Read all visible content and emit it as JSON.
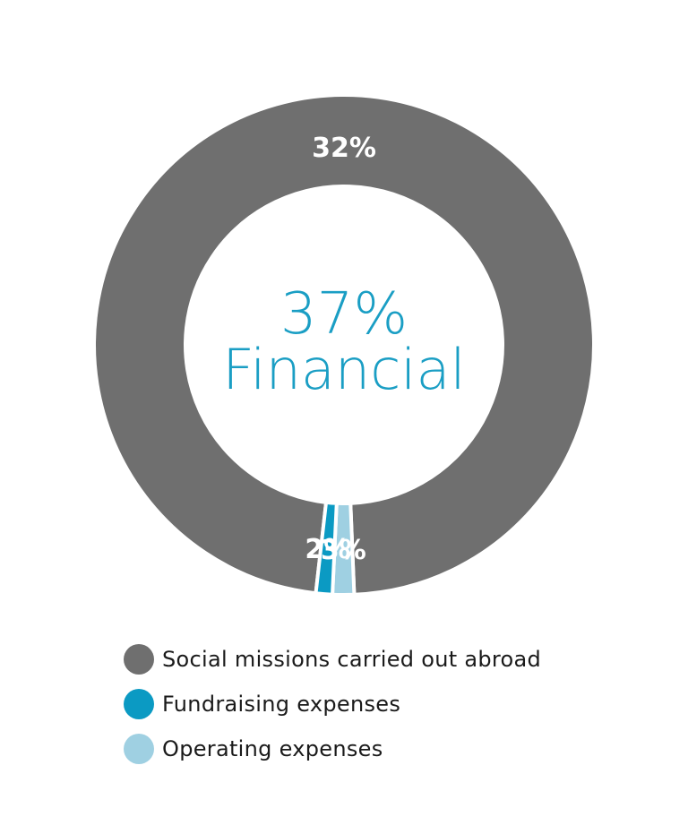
{
  "chart_data": {
    "type": "pie",
    "variant": "donut",
    "center_label": {
      "value": "37%",
      "text": "Financial"
    },
    "slices": [
      {
        "label": "Social missions carried out abroad",
        "value": 32,
        "value_label": "32%",
        "color": "#6f6f6f"
      },
      {
        "label": "Fundraising expenses",
        "value": 2,
        "value_label": "2%",
        "color": "#0b9ac3"
      },
      {
        "label": "Operating expenses",
        "value": 3,
        "value_label": "3%",
        "color": "#9fd0e2"
      }
    ],
    "legend_position": "bottom",
    "colors": {
      "center_text": "#1a9ec4",
      "slice_label": "#ffffff",
      "separator": "#ffffff",
      "legend_text": "#1a1a1a"
    }
  }
}
